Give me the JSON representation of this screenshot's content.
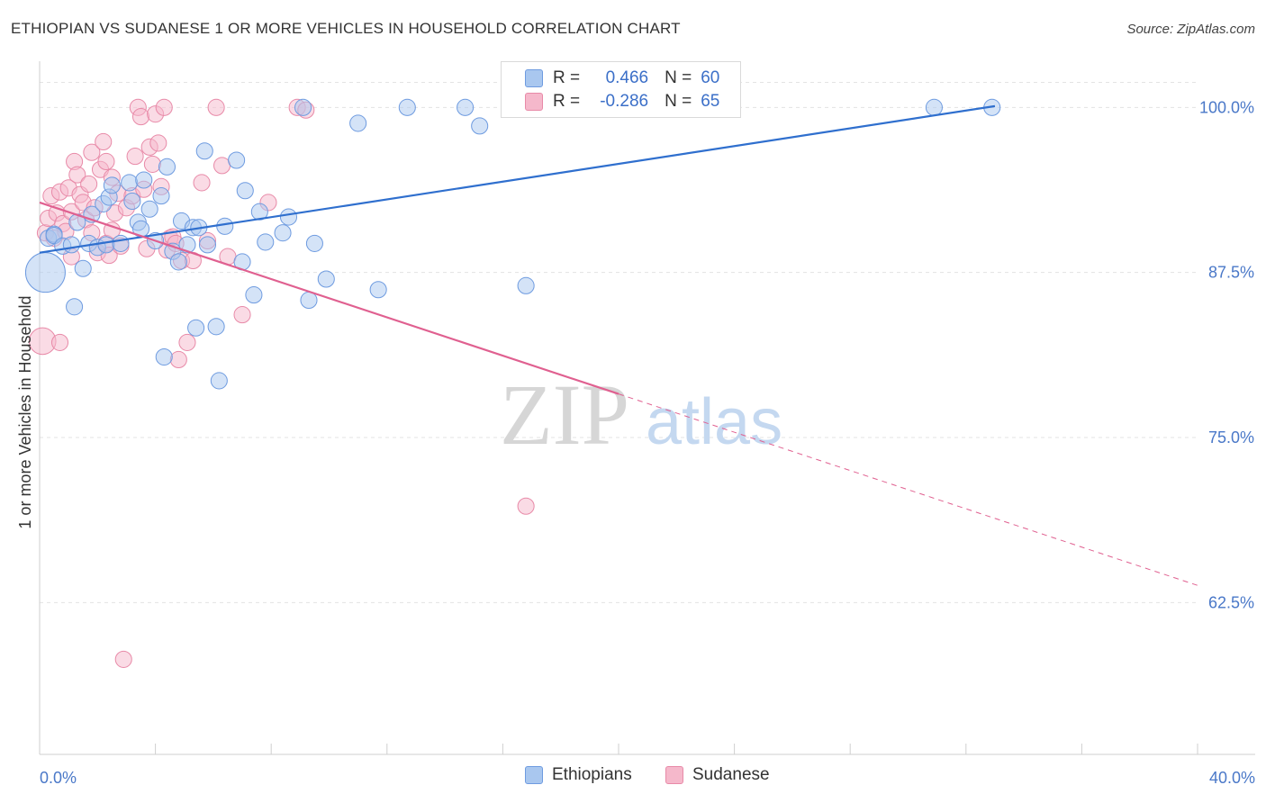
{
  "header": {
    "title": "ETHIOPIAN VS SUDANESE 1 OR MORE VEHICLES IN HOUSEHOLD CORRELATION CHART",
    "source": "Source: ZipAtlas.com"
  },
  "watermark": {
    "zip": "ZIP",
    "atlas": "atlas"
  },
  "colors": {
    "blue_fill": "#a9c7ef",
    "blue_stroke": "#6e9be0",
    "blue_line": "#2f6fce",
    "pink_fill": "#f5b8cb",
    "pink_stroke": "#e88aa8",
    "pink_line": "#e06090",
    "tick_label": "#4a78c8",
    "grid": "#e3e3e3"
  },
  "legend": {
    "rows": [
      {
        "r_label": "R =",
        "r_value": "0.466",
        "n_label": "N =",
        "n_value": "60"
      },
      {
        "r_label": "R =",
        "r_value": "-0.286",
        "n_label": "N =",
        "n_value": "65"
      }
    ]
  },
  "chart_data": {
    "type": "scatter",
    "title": "ETHIOPIAN VS SUDANESE 1 OR MORE VEHICLES IN HOUSEHOLD CORRELATION CHART",
    "xlabel": "",
    "ylabel": "1 or more Vehicles in Household",
    "xlim": [
      0,
      40
    ],
    "ylim": [
      51,
      103.5
    ],
    "x_tick_labels": [
      "0.0%",
      "40.0%"
    ],
    "y_ticks": [
      62.5,
      75.0,
      87.5,
      100.0
    ],
    "y_tick_labels": [
      "62.5%",
      "75.0%",
      "87.5%",
      "100.0%"
    ],
    "grid": true,
    "legend_position": "bottom-center",
    "series": [
      {
        "name": "Ethiopians",
        "r": 0.466,
        "n": 60,
        "trend": {
          "x0": 0,
          "y0": 89.0,
          "x1": 33,
          "y1": 100.1
        },
        "points": [
          [
            0.2,
            87.5,
            30
          ],
          [
            0.3,
            90.1,
            12
          ],
          [
            0.5,
            90.4,
            12
          ],
          [
            0.5,
            90.3,
            12
          ],
          [
            0.8,
            89.5,
            12
          ],
          [
            1.1,
            89.6,
            12
          ],
          [
            1.3,
            91.3,
            12
          ],
          [
            1.2,
            84.9,
            12
          ],
          [
            1.5,
            87.8,
            12
          ],
          [
            1.7,
            89.7,
            12
          ],
          [
            1.8,
            91.9,
            12
          ],
          [
            2.0,
            89.4,
            12
          ],
          [
            2.2,
            92.7,
            12
          ],
          [
            2.3,
            89.6,
            12
          ],
          [
            2.4,
            93.2,
            12
          ],
          [
            2.5,
            94.1,
            12
          ],
          [
            2.8,
            89.7,
            12
          ],
          [
            3.1,
            94.3,
            12
          ],
          [
            3.2,
            92.9,
            12
          ],
          [
            3.4,
            91.3,
            12
          ],
          [
            3.5,
            90.8,
            12
          ],
          [
            3.6,
            94.5,
            12
          ],
          [
            3.8,
            92.3,
            12
          ],
          [
            4.0,
            89.9,
            12
          ],
          [
            4.2,
            93.3,
            12
          ],
          [
            4.3,
            81.1,
            12
          ],
          [
            4.4,
            95.5,
            12
          ],
          [
            4.6,
            89.1,
            12
          ],
          [
            4.8,
            88.3,
            12
          ],
          [
            4.9,
            91.4,
            12
          ],
          [
            5.1,
            89.6,
            12
          ],
          [
            5.3,
            90.9,
            12
          ],
          [
            5.4,
            83.3,
            12
          ],
          [
            5.5,
            90.9,
            12
          ],
          [
            5.7,
            96.7,
            12
          ],
          [
            5.8,
            89.6,
            12
          ],
          [
            6.1,
            83.4,
            12
          ],
          [
            6.2,
            79.3,
            12
          ],
          [
            6.4,
            91.0,
            12
          ],
          [
            6.8,
            96.0,
            12
          ],
          [
            7.0,
            88.3,
            12
          ],
          [
            7.1,
            93.7,
            12
          ],
          [
            7.4,
            85.8,
            12
          ],
          [
            7.6,
            92.1,
            12
          ],
          [
            7.8,
            89.8,
            12
          ],
          [
            8.4,
            90.5,
            12
          ],
          [
            8.6,
            91.7,
            12
          ],
          [
            9.1,
            100.0,
            12
          ],
          [
            9.3,
            85.4,
            12
          ],
          [
            9.5,
            89.7,
            12
          ],
          [
            9.9,
            87.0,
            12
          ],
          [
            11.0,
            98.8,
            12
          ],
          [
            11.7,
            86.2,
            12
          ],
          [
            12.7,
            100.0,
            12
          ],
          [
            14.7,
            100.0,
            12
          ],
          [
            15.2,
            98.6,
            12
          ],
          [
            16.8,
            86.5,
            12
          ],
          [
            20.8,
            100.0,
            12
          ],
          [
            30.9,
            100.0,
            12
          ],
          [
            32.9,
            100.0,
            12
          ]
        ]
      },
      {
        "name": "Sudanese",
        "r": -0.286,
        "n": 65,
        "trend": {
          "x0": 0,
          "y0": 92.8,
          "x1": 20,
          "y1": 78.3,
          "x_dash_end": 40,
          "y_dash_end": 63.8
        },
        "points": [
          [
            0.1,
            82.3,
            20
          ],
          [
            0.2,
            90.5,
            12
          ],
          [
            0.3,
            91.6,
            12
          ],
          [
            0.4,
            93.3,
            12
          ],
          [
            0.5,
            90.1,
            12
          ],
          [
            0.6,
            92.0,
            12
          ],
          [
            0.7,
            93.6,
            12
          ],
          [
            0.7,
            82.2,
            12
          ],
          [
            0.8,
            91.2,
            12
          ],
          [
            0.9,
            90.6,
            12
          ],
          [
            1.0,
            93.9,
            12
          ],
          [
            1.1,
            92.1,
            12
          ],
          [
            1.1,
            88.7,
            12
          ],
          [
            1.2,
            95.9,
            12
          ],
          [
            1.3,
            94.9,
            12
          ],
          [
            1.4,
            93.4,
            12
          ],
          [
            1.5,
            92.8,
            12
          ],
          [
            1.6,
            91.5,
            12
          ],
          [
            1.7,
            94.2,
            12
          ],
          [
            1.8,
            96.6,
            12
          ],
          [
            1.8,
            90.5,
            12
          ],
          [
            1.9,
            92.4,
            12
          ],
          [
            2.0,
            89.0,
            12
          ],
          [
            2.1,
            95.3,
            12
          ],
          [
            2.2,
            97.4,
            12
          ],
          [
            2.3,
            89.7,
            12
          ],
          [
            2.4,
            88.8,
            12
          ],
          [
            2.5,
            90.7,
            12
          ],
          [
            2.6,
            92.0,
            12
          ],
          [
            2.7,
            93.5,
            12
          ],
          [
            2.8,
            89.5,
            12
          ],
          [
            2.9,
            58.2,
            12
          ],
          [
            2.5,
            94.7,
            12
          ],
          [
            3.0,
            92.4,
            12
          ],
          [
            2.3,
            95.9,
            12
          ],
          [
            3.2,
            93.3,
            12
          ],
          [
            3.3,
            96.3,
            12
          ],
          [
            3.4,
            100.0,
            12
          ],
          [
            3.5,
            99.3,
            12
          ],
          [
            3.6,
            93.8,
            12
          ],
          [
            3.7,
            89.3,
            12
          ],
          [
            3.8,
            97.0,
            12
          ],
          [
            3.9,
            95.7,
            12
          ],
          [
            4.0,
            99.5,
            12
          ],
          [
            4.1,
            97.3,
            12
          ],
          [
            4.2,
            94.0,
            12
          ],
          [
            4.3,
            100.0,
            12
          ],
          [
            4.4,
            89.2,
            12
          ],
          [
            4.5,
            90.1,
            12
          ],
          [
            4.6,
            90.2,
            12
          ],
          [
            4.7,
            89.7,
            12
          ],
          [
            4.8,
            80.9,
            12
          ],
          [
            4.9,
            88.4,
            12
          ],
          [
            5.1,
            82.2,
            12
          ],
          [
            5.3,
            88.4,
            12
          ],
          [
            5.6,
            94.3,
            12
          ],
          [
            5.8,
            89.9,
            12
          ],
          [
            6.1,
            100.0,
            12
          ],
          [
            6.3,
            95.6,
            12
          ],
          [
            6.5,
            88.7,
            12
          ],
          [
            7.0,
            84.3,
            12
          ],
          [
            7.9,
            92.8,
            12
          ],
          [
            8.9,
            100.0,
            12
          ],
          [
            9.2,
            99.8,
            12
          ],
          [
            16.8,
            69.8,
            12
          ]
        ]
      }
    ]
  },
  "bottom_legend": {
    "item1": "Ethiopians",
    "item2": "Sudanese"
  }
}
